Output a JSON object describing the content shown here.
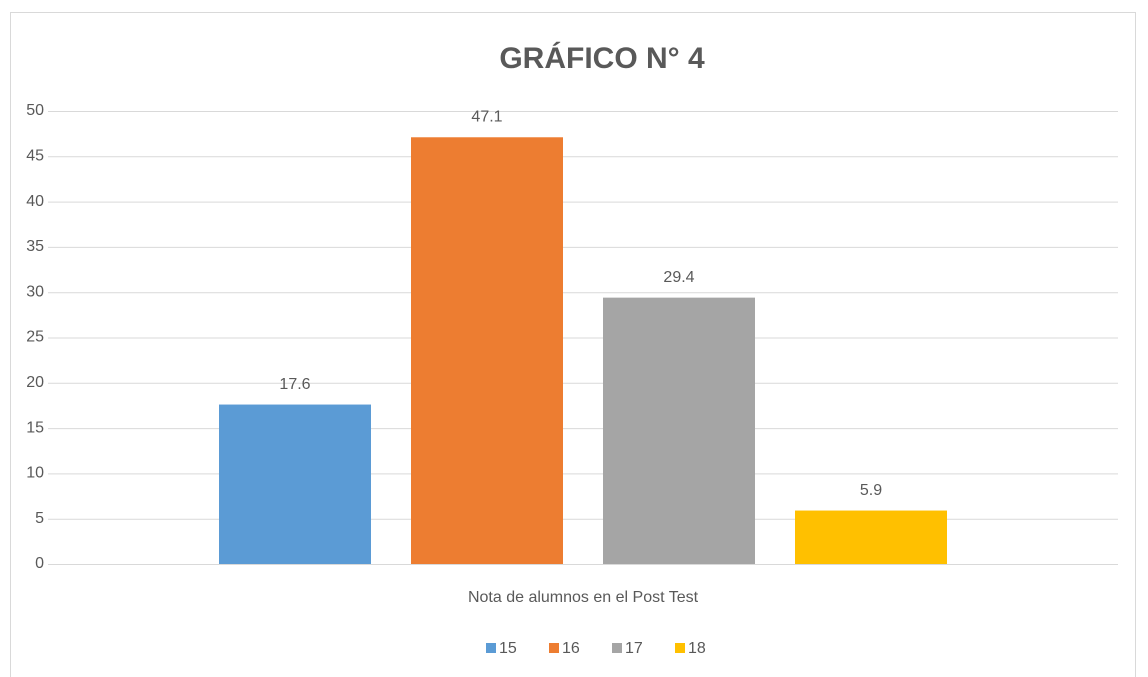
{
  "chart_data": {
    "type": "bar",
    "title": "GRÁFICO N° 4",
    "categories": [
      "Nota de alumnos en el Post Test"
    ],
    "series": [
      {
        "name": "15",
        "color": "#5b9bd5",
        "values": [
          17.6
        ]
      },
      {
        "name": "16",
        "color": "#ed7d31",
        "values": [
          47.1
        ]
      },
      {
        "name": "17",
        "color": "#a5a5a5",
        "values": [
          29.4
        ]
      },
      {
        "name": "18",
        "color": "#ffc000",
        "values": [
          5.9
        ]
      }
    ],
    "ylim": [
      0,
      50
    ],
    "yticks": [
      0,
      5,
      10,
      15,
      20,
      25,
      30,
      35,
      40,
      45,
      50
    ],
    "grid": true,
    "legend": "bottom"
  }
}
